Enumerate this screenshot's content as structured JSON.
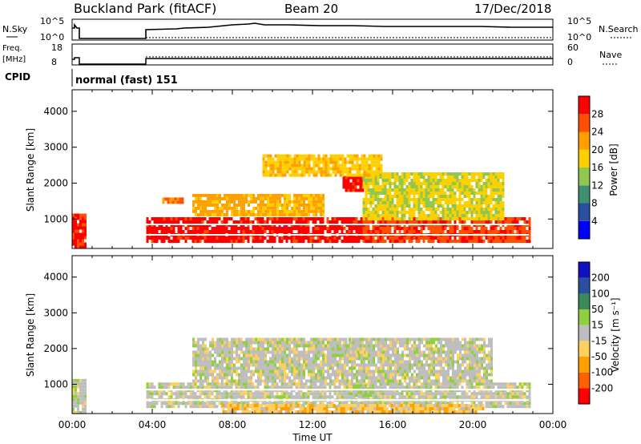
{
  "header": {
    "station": "Buckland Park (fitACF)",
    "beam": "Beam 20",
    "date": "17/Dec/2018"
  },
  "panels": {
    "nsky": {
      "label": "N.Sky",
      "ticks": [
        "10^5",
        "10^0"
      ],
      "right_label": "N.Search",
      "right_ticks": [
        "10^5",
        "10^0"
      ]
    },
    "freq": {
      "label_top": "Freq.",
      "label_bottom": "[MHz]",
      "ticks": [
        "18",
        "8"
      ],
      "right_label": "Nave",
      "right_ticks": [
        "60",
        "0"
      ]
    },
    "cpid": {
      "label": "CPID",
      "value": "normal (fast)  151"
    }
  },
  "colors": {
    "power": [
      "#0000ff",
      "#2a4fa0",
      "#3f9070",
      "#8ec850",
      "#ffd000",
      "#ffa000",
      "#ff5000",
      "#ff0000"
    ],
    "velocity": [
      "#ff0000",
      "#ff6000",
      "#ffa000",
      "#ffd060",
      "#bebebe",
      "#90d040",
      "#3a8a5a",
      "#2a4fa0",
      "#1010c0"
    ],
    "groundscatter": "#bebebe"
  },
  "chart_data": [
    {
      "type": "heatmap",
      "name": "power",
      "ylabel": "Slant Range [km]",
      "yticks": [
        "1000",
        "2000",
        "3000",
        "4000"
      ],
      "ylim": [
        180,
        4600
      ],
      "xlim": [
        0,
        24
      ],
      "colorbar": {
        "label": "Power [dB]",
        "ticks": [
          "4",
          "8",
          "12",
          "16",
          "20",
          "24",
          "28"
        ],
        "range": [
          0,
          32
        ]
      },
      "data_gaps": [
        [
          0.7,
          3.7
        ]
      ],
      "regions": [
        {
          "x0": 0.0,
          "x1": 0.7,
          "y0": 250,
          "y1": 1150,
          "value": 29
        },
        {
          "x0": 3.7,
          "x1": 14.5,
          "y0": 350,
          "y1": 1050,
          "value": 30
        },
        {
          "x0": 14.5,
          "x1": 22.8,
          "y0": 350,
          "y1": 1050,
          "value": 27
        },
        {
          "x0": 6.0,
          "x1": 12.5,
          "y0": 1100,
          "y1": 1700,
          "value": 21
        },
        {
          "x0": 13.5,
          "x1": 14.5,
          "y0": 1800,
          "y1": 2200,
          "value": 30
        },
        {
          "x0": 14.5,
          "x1": 21.5,
          "y0": 1000,
          "y1": 2300,
          "value": 17
        },
        {
          "x0": 9.5,
          "x1": 15.5,
          "y0": 2200,
          "y1": 2800,
          "value": 19
        },
        {
          "x0": 4.5,
          "x1": 5.5,
          "y0": 1450,
          "y1": 1600,
          "value": 25
        }
      ]
    },
    {
      "type": "heatmap",
      "name": "velocity",
      "ylabel": "Slant Range [km]",
      "yticks": [
        "1000",
        "2000",
        "3000",
        "4000"
      ],
      "ylim": [
        180,
        4600
      ],
      "xlim": [
        0,
        24
      ],
      "xlabel": "Time UT",
      "xticks": [
        "00:00",
        "04:00",
        "08:00",
        "12:00",
        "16:00",
        "20:00",
        "00:00"
      ],
      "colorbar": {
        "label": "Velocity [m s⁻¹]",
        "ticks": [
          "200",
          "100",
          "50",
          "15",
          "-15",
          "-50",
          "-100",
          "-200"
        ],
        "range": [
          -250,
          250
        ]
      },
      "data_gaps": [
        [
          0.7,
          3.7
        ]
      ],
      "regions": [
        {
          "x0": 0.0,
          "x1": 0.7,
          "y0": 250,
          "y1": 1150,
          "value": 0
        },
        {
          "x0": 3.7,
          "x1": 22.8,
          "y0": 350,
          "y1": 1050,
          "value": 0
        },
        {
          "x0": 7.5,
          "x1": 20.5,
          "y0": 200,
          "y1": 450,
          "value": -60
        },
        {
          "x0": 14.0,
          "x1": 15.0,
          "y0": 700,
          "y1": 1000,
          "value": 40
        },
        {
          "x0": 6.0,
          "x1": 21.0,
          "y0": 1100,
          "y1": 2300,
          "value": 0
        },
        {
          "x0": 13.5,
          "x1": 14.5,
          "y0": 1900,
          "y1": 2300,
          "value": 0
        }
      ]
    }
  ]
}
